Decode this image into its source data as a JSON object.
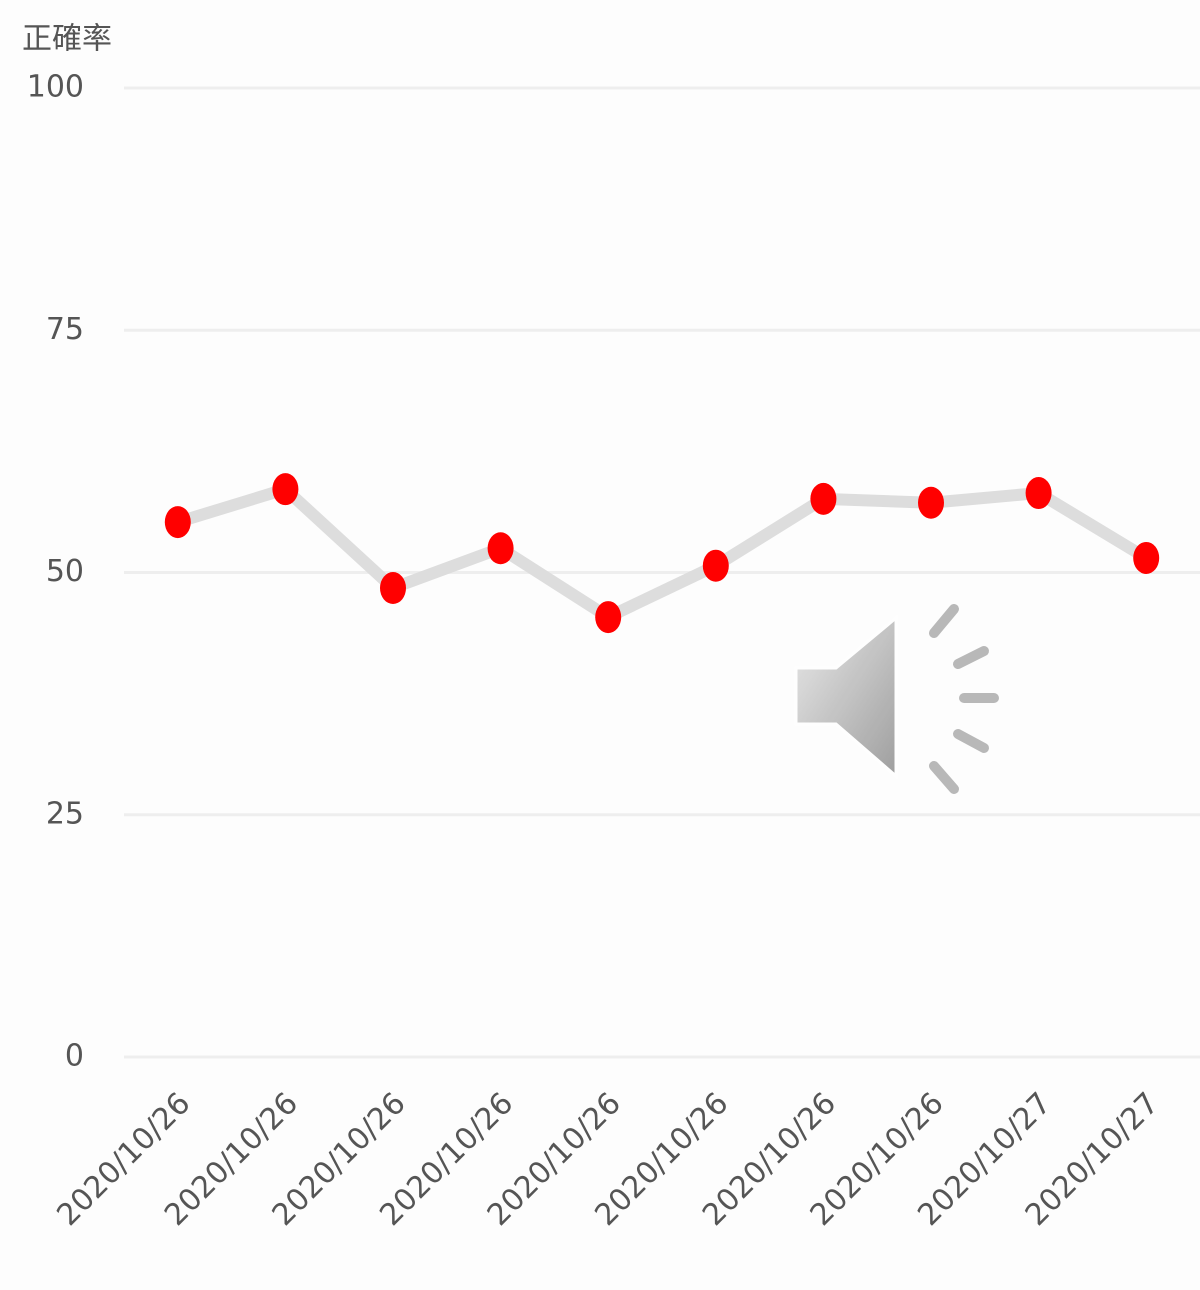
{
  "chart_data": {
    "type": "line",
    "y_label": "正確率",
    "categories": [
      "2020/10/26",
      "2020/10/26",
      "2020/10/26",
      "2020/10/26",
      "2020/10/26",
      "2020/10/26",
      "2020/10/26",
      "2020/10/26",
      "2020/10/27",
      "2020/10/27"
    ],
    "values": [
      55.2,
      58.6,
      48.4,
      52.5,
      45.4,
      50.7,
      57.6,
      57.2,
      58.2,
      51.5
    ],
    "line_color": "#dddddd",
    "marker_color": "#ff0000",
    "ylim": [
      0,
      100
    ],
    "yticks": [
      0,
      25,
      50,
      75,
      100
    ],
    "grid": true
  }
}
